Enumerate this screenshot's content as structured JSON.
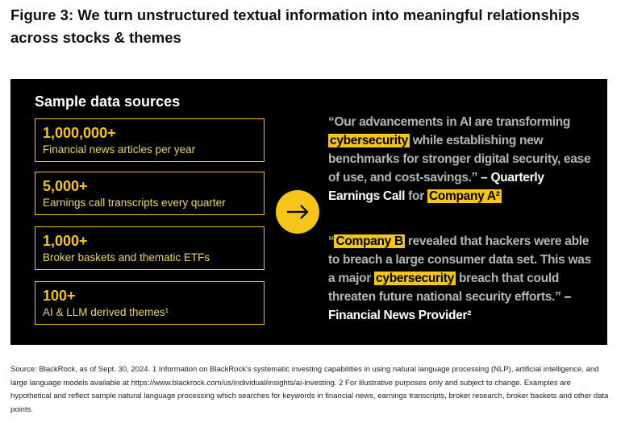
{
  "header": {
    "title": "Figure 3: We turn unstructured textual information into meaningful relationships across stocks & themes"
  },
  "panel": {
    "heading": "Sample data sources",
    "sources": [
      {
        "number": "1,000,000+",
        "description": "Financial news articles per year"
      },
      {
        "number": "5,000+",
        "description": "Earnings call transcripts every quarter"
      },
      {
        "number": "1,000+",
        "description": "Broker baskets and thematic ETFs"
      },
      {
        "number": "100+",
        "description": "AI & LLM derived themes¹"
      }
    ],
    "quotes": [
      [
        {
          "text": "“Our advancements in AI are transforming ",
          "style": "quote"
        },
        {
          "text": "cybersecurity",
          "style": "highlight"
        },
        {
          "text": " while establishing new benchmarks for stronger digital security, ease of use, and cost-savings.” ",
          "style": "quote"
        },
        {
          "text": "– Quarterly Earnings Call",
          "style": "source"
        },
        {
          "text": " for ",
          "style": "quote"
        },
        {
          "text": "Company A²",
          "style": "highlight"
        }
      ],
      [
        {
          "text": "“",
          "style": "quote"
        },
        {
          "text": "Company B",
          "style": "highlight"
        },
        {
          "text": " revealed that hackers were able to breach a large consumer data set. This was a major ",
          "style": "quote"
        },
        {
          "text": "cybersecurity",
          "style": "highlight"
        },
        {
          "text": " breach that could threaten future national security efforts.” ",
          "style": "quote"
        },
        {
          "text": "– Financial News Provider²",
          "style": "source"
        }
      ]
    ]
  },
  "footnote": "Source: BlackRock, as of Sept. 30, 2024. 1 Information on BlackRock's systematic investing capabilities in using natural language processing (NLP), artificial intelligence, and large language models available at https://www.blackrock.com/us/individual/insights/ai-investing. 2 For illustrative purposes only and subject to change. Examples are hypothetical and reflect sample natural language processing which searches for keywords in financial news, earnings transcripts, broker research, broker baskets and other data points."
}
